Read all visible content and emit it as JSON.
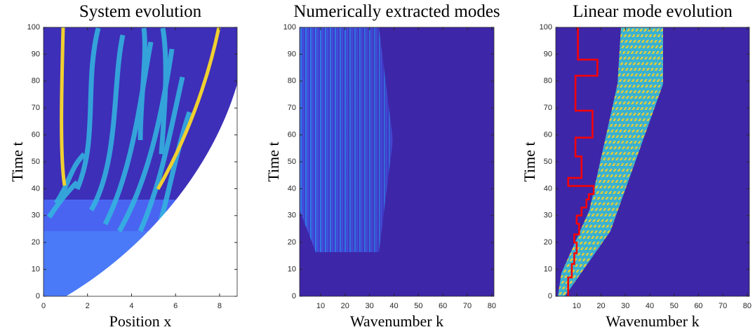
{
  "chart_data": [
    {
      "type": "heatmap",
      "title": "System evolution",
      "xlabel": "Position x",
      "ylabel": "Time t",
      "xlim": [
        0,
        8.8
      ],
      "ylim": [
        0,
        100
      ],
      "xticks": [
        0,
        2,
        4,
        6,
        8
      ],
      "yticks": [
        0,
        10,
        20,
        30,
        40,
        50,
        60,
        70,
        80,
        90,
        100
      ]
    },
    {
      "type": "heatmap",
      "title": "Numerically extracted modes",
      "xlabel": "Wavenumber k",
      "ylabel": "Time t",
      "xlim": [
        1.4,
        80.9
      ],
      "ylim": [
        0,
        100
      ],
      "xticks": [
        10,
        20,
        30,
        40,
        50,
        60,
        70,
        80
      ],
      "yticks": [
        0,
        10,
        20,
        30,
        40,
        50,
        60,
        70,
        80,
        90,
        100
      ]
    },
    {
      "type": "heatmap",
      "title": "Linear mode evolution",
      "xlabel": "Wavenumber k",
      "ylabel": "Time t",
      "xlim": [
        1.4,
        80.9
      ],
      "ylim": [
        0,
        100
      ],
      "xticks": [
        10,
        20,
        30,
        40,
        50,
        60,
        70,
        80
      ],
      "yticks": [
        0,
        10,
        20,
        30,
        40,
        50,
        60,
        70,
        80,
        90,
        100
      ],
      "line": {
        "color": "#ff0000",
        "x": [
          6.5,
          6.5,
          8,
          8,
          9,
          9,
          10,
          10,
          9,
          9,
          11,
          11,
          10,
          10,
          12,
          12,
          14,
          14,
          15,
          15,
          17,
          17,
          6.5,
          6.5,
          12,
          12,
          9.5,
          9.5,
          16.5,
          16.5,
          9.5,
          9.5,
          18.5,
          18.5,
          10.5,
          10.5
        ],
        "y": [
          0,
          7,
          7,
          12,
          12,
          16,
          16,
          20,
          20,
          23,
          23,
          27,
          27,
          30,
          30,
          33,
          33,
          36,
          36,
          38,
          38,
          41,
          41,
          44,
          44,
          52,
          52,
          59,
          59,
          69,
          69,
          82,
          82,
          88,
          88,
          100
        ]
      }
    }
  ]
}
